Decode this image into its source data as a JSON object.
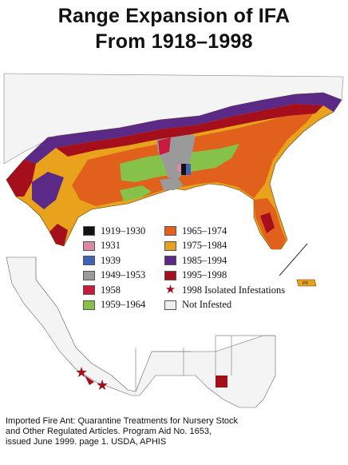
{
  "title_line1": "Range Expansion of IFA",
  "title_line2": "From 1918–1998",
  "legend": [
    {
      "label": "1919–1930",
      "color": "#111111"
    },
    {
      "label": "1931",
      "color": "#d98aa0"
    },
    {
      "label": "1939",
      "color": "#3f63b8"
    },
    {
      "label": "1949–1953",
      "color": "#9a9a9a"
    },
    {
      "label": "1958",
      "color": "#c8193f"
    },
    {
      "label": "1959–1964",
      "color": "#86c24a"
    },
    {
      "label": "1965–1974",
      "color": "#e0601c"
    },
    {
      "label": "1975–1984",
      "color": "#e9a21c"
    },
    {
      "label": "1985–1994",
      "color": "#5b2a86"
    },
    {
      "label": "1995–1998",
      "color": "#a50f1b"
    },
    {
      "label": "1998 Isolated Infestations",
      "color": "#a0101c",
      "icon": "star-icon"
    },
    {
      "label": "Not Infested",
      "color": "#eeeeee"
    }
  ],
  "pr_label": "PR",
  "caption": {
    "line1": "Imported Fire Ant: Quarantine Treatments for Nursery Stock",
    "line2": "and Other  Regulated Articles. Program Aid No. 1653,",
    "line3": "issued June 1999. page 1.  USDA, APHIS"
  }
}
